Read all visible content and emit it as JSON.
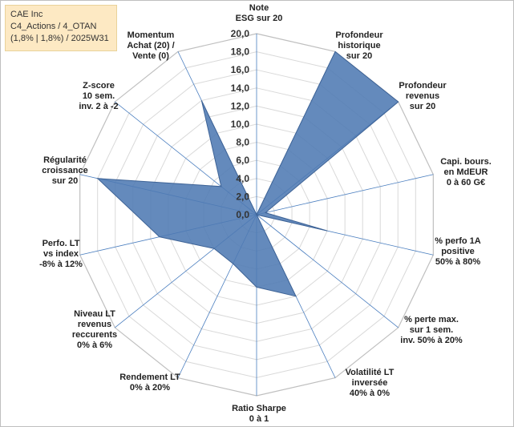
{
  "info": {
    "company": "CAE Inc",
    "portfolio": "C4_Actions / 4_OTAN",
    "stats": "(1,8% | 1,8%) / 2025W31"
  },
  "colors": {
    "fill": "#4f7ab3",
    "stroke": "#3e6396",
    "grid": "#d9d9d9",
    "spoke": "#4a7ebf"
  },
  "chart_data": {
    "type": "radar",
    "title": "",
    "rmin": 0,
    "rmax": 20,
    "tick_step": 2,
    "tick_labels": [
      "0,0",
      "2,0",
      "4,0",
      "6,0",
      "8,0",
      "10,0",
      "12,0",
      "14,0",
      "16,0",
      "18,0",
      "20,0"
    ],
    "axes": [
      {
        "label": [
          "Note",
          "ESG sur 20"
        ],
        "value": 0
      },
      {
        "label": [
          "Profondeur",
          "historique",
          "sur 20"
        ],
        "value": 20
      },
      {
        "label": [
          "Profondeur",
          "revenus",
          "sur 20"
        ],
        "value": 20
      },
      {
        "label": [
          "Capi. bours.",
          "en MdEUR",
          "0 à 60 G€"
        ],
        "value": 1
      },
      {
        "label": [
          "% perfo 1A",
          "positive",
          "50% à 80%"
        ],
        "value": 8
      },
      {
        "label": [
          "% perte max.",
          "sur 1 sem.",
          "inv. 50% à 20%"
        ],
        "value": 0
      },
      {
        "label": [
          "Volatilité LT",
          "inversée",
          "40% à 0%"
        ],
        "value": 10
      },
      {
        "label": [
          "Ratio Sharpe",
          "0 à 1"
        ],
        "value": 8
      },
      {
        "label": [
          "Rendement LT",
          "0% à 20%"
        ],
        "value": 6
      },
      {
        "label": [
          "Niveau LT",
          "revenus",
          "reccurents",
          "0% à 6%"
        ],
        "value": 6
      },
      {
        "label": [
          "Perfo. LT",
          "vs index",
          "-8% à 12%"
        ],
        "value": 11
      },
      {
        "label": [
          "Régularité",
          "croissance",
          "sur 20"
        ],
        "value": 18
      },
      {
        "label": [
          "Z-score",
          "10 sem.",
          "inv. 2 à -2"
        ],
        "value": 5
      },
      {
        "label": [
          "Momentum",
          "Achat (20) /",
          "Vente (0)"
        ],
        "value": 14
      }
    ]
  }
}
